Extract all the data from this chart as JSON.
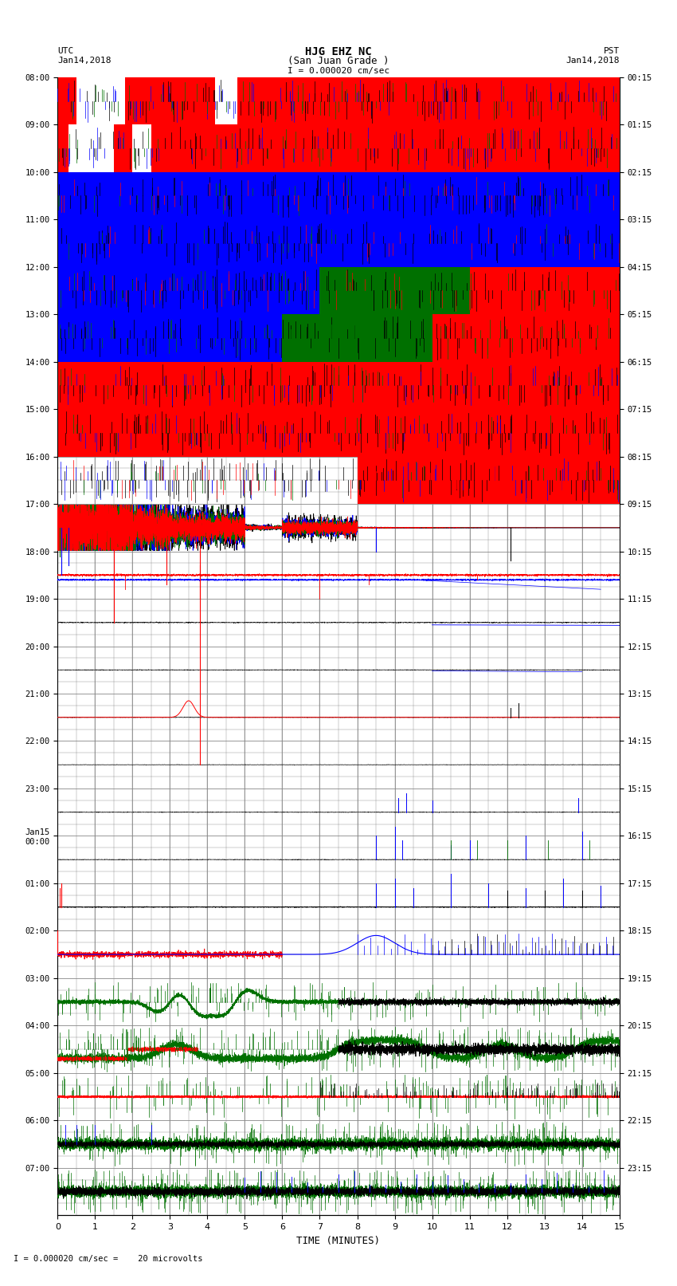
{
  "title_line1": "HJG EHZ NC",
  "title_line2": "(San Juan Grade )",
  "title_scale": "I = 0.000020 cm/sec",
  "left_label_top": "UTC",
  "left_label_date": "Jan14,2018",
  "right_label_top": "PST",
  "right_label_date": "Jan14,2018",
  "bottom_label": "TIME (MINUTES)",
  "bottom_note": "I = 0.000020 cm/sec =    20 microvolts",
  "xlim": [
    0,
    15
  ],
  "xticks": [
    0,
    1,
    2,
    3,
    4,
    5,
    6,
    7,
    8,
    9,
    10,
    11,
    12,
    13,
    14,
    15
  ],
  "left_yticks_labels": [
    "08:00",
    "09:00",
    "10:00",
    "11:00",
    "12:00",
    "13:00",
    "14:00",
    "15:00",
    "16:00",
    "17:00",
    "18:00",
    "19:00",
    "20:00",
    "21:00",
    "22:00",
    "23:00",
    "Jan15\n00:00",
    "01:00",
    "02:00",
    "03:00",
    "04:00",
    "05:00",
    "06:00",
    "07:00"
  ],
  "right_yticks_labels": [
    "00:15",
    "01:15",
    "02:15",
    "03:15",
    "04:15",
    "05:15",
    "06:15",
    "07:15",
    "08:15",
    "09:15",
    "10:15",
    "11:15",
    "12:15",
    "13:15",
    "14:15",
    "15:15",
    "16:15",
    "17:15",
    "18:15",
    "19:15",
    "20:15",
    "21:15",
    "22:15",
    "23:15"
  ],
  "n_rows": 24,
  "bg_color": "white",
  "grid_color": "#888888",
  "colors": {
    "red": "#ff0000",
    "blue": "#0000ff",
    "green": "#007000",
    "black": "#000000"
  },
  "figsize": [
    8.5,
    16.13
  ],
  "dpi": 100
}
